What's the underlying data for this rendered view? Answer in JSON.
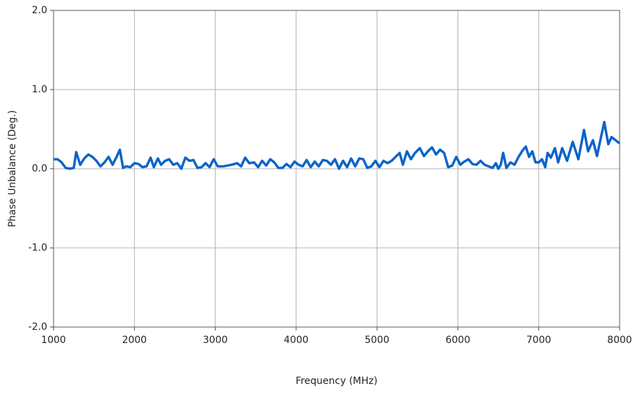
{
  "chart_data": {
    "type": "line",
    "xlabel": "Frequency (MHz)",
    "ylabel": "Phase Unbalance (Deg.)",
    "xlim": [
      1000,
      8000
    ],
    "xticks": [
      1000,
      2000,
      3000,
      4000,
      5000,
      6000,
      7000,
      8000
    ],
    "ylim": [
      -2,
      2
    ],
    "yticks": [
      {
        "value": -2,
        "label": "-2.0"
      },
      {
        "value": -1,
        "label": "-1.0"
      },
      {
        "value": 0,
        "label": "0.0"
      },
      {
        "value": 1,
        "label": "1.0"
      },
      {
        "value": 2,
        "label": "2.0"
      }
    ],
    "grid": true,
    "x": [
      1000,
      1050,
      1100,
      1150,
      1200,
      1250,
      1280,
      1330,
      1380,
      1430,
      1480,
      1530,
      1580,
      1630,
      1680,
      1730,
      1780,
      1820,
      1860,
      1900,
      1950,
      2000,
      2050,
      2100,
      2150,
      2200,
      2240,
      2290,
      2330,
      2380,
      2430,
      2480,
      2530,
      2580,
      2630,
      2680,
      2730,
      2780,
      2830,
      2880,
      2930,
      2980,
      3030,
      3100,
      3200,
      3270,
      3320,
      3370,
      3420,
      3480,
      3530,
      3580,
      3630,
      3680,
      3730,
      3780,
      3830,
      3880,
      3930,
      3980,
      4030,
      4080,
      4130,
      4180,
      4230,
      4280,
      4330,
      4380,
      4430,
      4480,
      4530,
      4580,
      4630,
      4680,
      4730,
      4780,
      4830,
      4880,
      4930,
      4980,
      5030,
      5080,
      5130,
      5180,
      5230,
      5280,
      5320,
      5370,
      5420,
      5470,
      5530,
      5580,
      5630,
      5680,
      5730,
      5780,
      5830,
      5880,
      5930,
      5980,
      6030,
      6080,
      6130,
      6180,
      6230,
      6280,
      6330,
      6380,
      6430,
      6470,
      6500,
      6530,
      6560,
      6600,
      6650,
      6700,
      6750,
      6800,
      6840,
      6880,
      6920,
      6960,
      7000,
      7040,
      7080,
      7110,
      7150,
      7200,
      7240,
      7290,
      7350,
      7420,
      7490,
      7560,
      7610,
      7670,
      7720,
      7810,
      7860,
      7900,
      8000
    ],
    "series": [
      {
        "color": "#0a64c8",
        "values": [
          0.12,
          0.12,
          0.08,
          0.01,
          0.0,
          0.01,
          0.21,
          0.05,
          0.13,
          0.18,
          0.15,
          0.1,
          0.03,
          0.08,
          0.15,
          0.05,
          0.15,
          0.24,
          0.01,
          0.03,
          0.02,
          0.07,
          0.06,
          0.02,
          0.03,
          0.14,
          0.02,
          0.13,
          0.05,
          0.1,
          0.12,
          0.05,
          0.07,
          0.0,
          0.14,
          0.1,
          0.11,
          0.01,
          0.02,
          0.07,
          0.02,
          0.12,
          0.03,
          0.03,
          0.05,
          0.07,
          0.03,
          0.14,
          0.07,
          0.08,
          0.02,
          0.1,
          0.04,
          0.12,
          0.08,
          0.01,
          0.01,
          0.06,
          0.02,
          0.09,
          0.05,
          0.03,
          0.11,
          0.02,
          0.09,
          0.03,
          0.11,
          0.1,
          0.05,
          0.12,
          0.0,
          0.1,
          0.02,
          0.13,
          0.03,
          0.13,
          0.12,
          0.01,
          0.03,
          0.1,
          0.02,
          0.1,
          0.07,
          0.1,
          0.15,
          0.2,
          0.05,
          0.22,
          0.12,
          0.2,
          0.26,
          0.16,
          0.22,
          0.27,
          0.18,
          0.24,
          0.2,
          0.02,
          0.04,
          0.15,
          0.05,
          0.09,
          0.12,
          0.06,
          0.05,
          0.1,
          0.05,
          0.03,
          0.01,
          0.07,
          0.0,
          0.05,
          0.2,
          0.01,
          0.08,
          0.05,
          0.15,
          0.23,
          0.28,
          0.15,
          0.22,
          0.08,
          0.08,
          0.12,
          0.02,
          0.2,
          0.14,
          0.26,
          0.08,
          0.26,
          0.1,
          0.34,
          0.12,
          0.49,
          0.22,
          0.36,
          0.16,
          0.59,
          0.31,
          0.4,
          0.32
        ]
      }
    ]
  }
}
